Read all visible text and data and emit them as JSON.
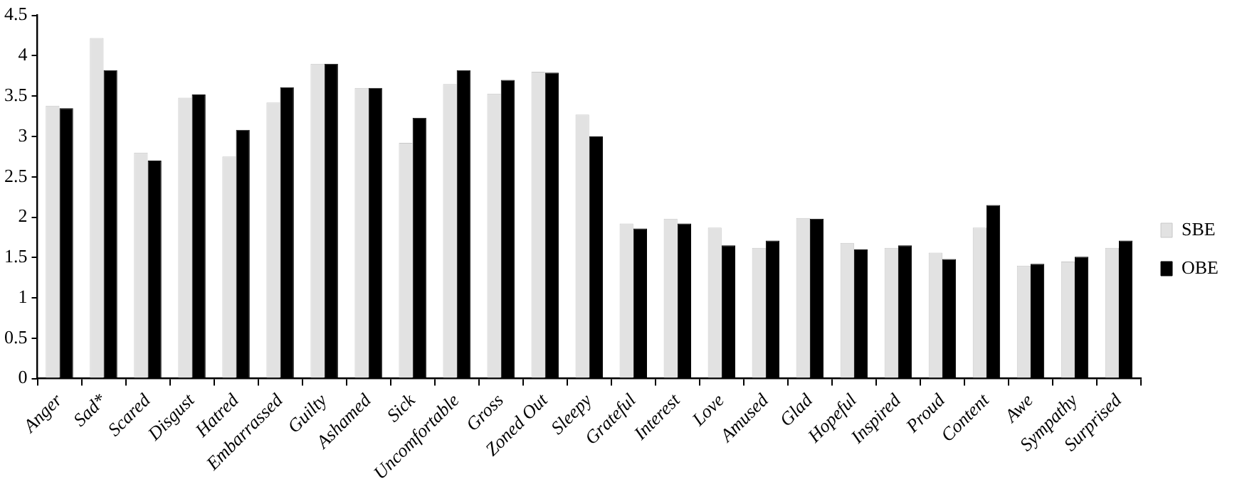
{
  "chart_data": {
    "type": "bar",
    "categories": [
      "Anger",
      "Sad*",
      "Scared",
      "Disgust",
      "Hatred",
      "Embarrassed",
      "Guilty",
      "Ashamed",
      "Sick",
      "Uncomfortable",
      "Gross",
      "Zoned Out",
      "Sleepy",
      "Grateful",
      "Interest",
      "Love",
      "Amused",
      "Glad",
      "Hopeful",
      "Inspired",
      "Proud",
      "Content",
      "Awe",
      "Sympathy",
      "Surprised"
    ],
    "series": [
      {
        "name": "SBE",
        "color": "#e2e2e2",
        "values": [
          3.38,
          4.22,
          2.8,
          3.48,
          2.75,
          3.42,
          3.9,
          3.6,
          2.92,
          3.65,
          3.53,
          3.8,
          3.27,
          1.92,
          1.98,
          1.87,
          1.62,
          1.99,
          1.68,
          1.62,
          1.56,
          1.87,
          1.4,
          1.45,
          1.62
        ]
      },
      {
        "name": "OBE",
        "color": "#000000",
        "values": [
          3.35,
          3.82,
          2.7,
          3.52,
          3.08,
          3.61,
          3.9,
          3.6,
          3.23,
          3.82,
          3.7,
          3.79,
          3.0,
          1.86,
          1.92,
          1.65,
          1.71,
          1.98,
          1.6,
          1.65,
          1.48,
          2.15,
          1.42,
          1.51,
          1.71
        ]
      }
    ],
    "ylim": [
      0,
      4.5
    ],
    "yticks": [
      0,
      0.5,
      1,
      1.5,
      2,
      2.5,
      3,
      3.5,
      4,
      4.5
    ],
    "grid": false,
    "legend": "right"
  }
}
